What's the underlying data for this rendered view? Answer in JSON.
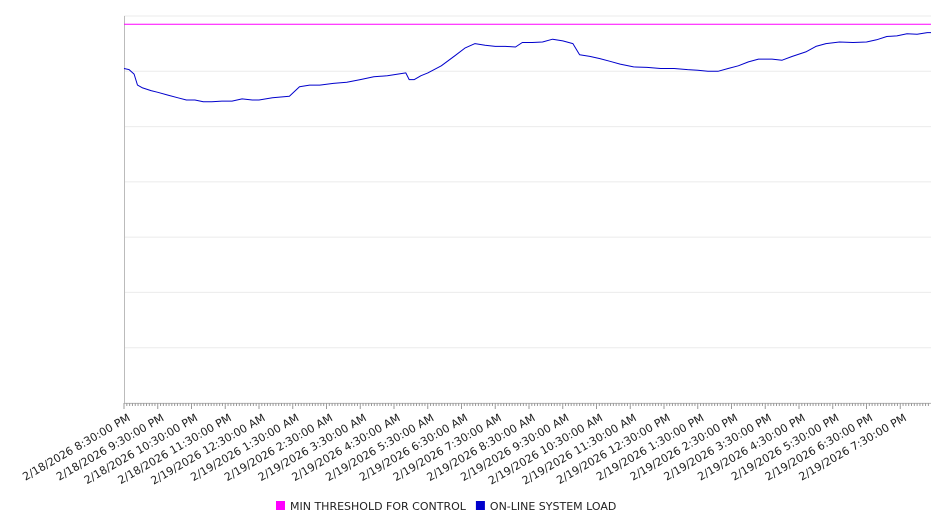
{
  "chart_data": {
    "type": "line",
    "title": "",
    "xlabel": "",
    "ylabel": "",
    "ylim": [
      0,
      7
    ],
    "grid": "horizontal",
    "legend_placement": "bottom-center",
    "x_tick_labels": [
      "2/18/2026 8:30:00 PM",
      "2/18/2026 9:30:00 PM",
      "2/18/2026 10:30:00 PM",
      "2/18/2026 11:30:00 PM",
      "2/19/2026 12:30:00 AM",
      "2/19/2026 1:30:00 AM",
      "2/19/2026 2:30:00 AM",
      "2/19/2026 3:30:00 AM",
      "2/19/2026 4:30:00 AM",
      "2/19/2026 5:30:00 AM",
      "2/19/2026 6:30:00 AM",
      "2/19/2026 7:30:00 AM",
      "2/19/2026 8:30:00 AM",
      "2/19/2026 9:30:00 AM",
      "2/19/2026 10:30:00 AM",
      "2/19/2026 11:30:00 AM",
      "2/19/2026 12:30:00 PM",
      "2/19/2026 1:30:00 PM",
      "2/19/2026 2:30:00 PM",
      "2/19/2026 3:30:00 PM",
      "2/19/2026 4:30:00 PM",
      "2/19/2026 5:30:00 PM",
      "2/19/2026 6:30:00 PM",
      "2/19/2026 7:30:00 PM"
    ],
    "x_minor_ticks_per_major": 12,
    "series": [
      {
        "name": "MIN THRESHOLD FOR CONTROL",
        "color": "#ff00ff",
        "points": [
          [
            0,
            6.85
          ],
          [
            24.25,
            6.85
          ]
        ]
      },
      {
        "name": "ON-LINE SYSTEM LOAD",
        "color": "#0000cc",
        "points": [
          [
            0,
            6.05
          ],
          [
            0.15,
            6.03
          ],
          [
            0.3,
            5.95
          ],
          [
            0.4,
            5.75
          ],
          [
            0.55,
            5.7
          ],
          [
            0.8,
            5.65
          ],
          [
            1.0,
            5.62
          ],
          [
            1.3,
            5.57
          ],
          [
            1.6,
            5.52
          ],
          [
            1.85,
            5.48
          ],
          [
            2.1,
            5.48
          ],
          [
            2.35,
            5.45
          ],
          [
            2.6,
            5.45
          ],
          [
            2.9,
            5.46
          ],
          [
            3.2,
            5.46
          ],
          [
            3.5,
            5.5
          ],
          [
            3.8,
            5.48
          ],
          [
            4.0,
            5.48
          ],
          [
            4.4,
            5.52
          ],
          [
            4.9,
            5.55
          ],
          [
            5.2,
            5.72
          ],
          [
            5.5,
            5.75
          ],
          [
            5.8,
            5.75
          ],
          [
            6.2,
            5.78
          ],
          [
            6.6,
            5.8
          ],
          [
            7.0,
            5.85
          ],
          [
            7.4,
            5.9
          ],
          [
            7.8,
            5.92
          ],
          [
            8.35,
            5.97
          ],
          [
            8.45,
            5.85
          ],
          [
            8.6,
            5.85
          ],
          [
            8.8,
            5.92
          ],
          [
            9.0,
            5.97
          ],
          [
            9.4,
            6.1
          ],
          [
            9.8,
            6.28
          ],
          [
            10.1,
            6.42
          ],
          [
            10.4,
            6.5
          ],
          [
            10.7,
            6.47
          ],
          [
            11.0,
            6.45
          ],
          [
            11.3,
            6.45
          ],
          [
            11.6,
            6.44
          ],
          [
            11.8,
            6.52
          ],
          [
            12.1,
            6.52
          ],
          [
            12.4,
            6.53
          ],
          [
            12.7,
            6.58
          ],
          [
            13.0,
            6.55
          ],
          [
            13.3,
            6.5
          ],
          [
            13.5,
            6.3
          ],
          [
            13.8,
            6.27
          ],
          [
            14.1,
            6.23
          ],
          [
            14.4,
            6.18
          ],
          [
            14.7,
            6.13
          ],
          [
            15.1,
            6.08
          ],
          [
            15.5,
            6.07
          ],
          [
            15.9,
            6.05
          ],
          [
            16.3,
            6.05
          ],
          [
            16.7,
            6.03
          ],
          [
            17.0,
            6.02
          ],
          [
            17.3,
            6.0
          ],
          [
            17.6,
            6.0
          ],
          [
            17.9,
            6.05
          ],
          [
            18.2,
            6.1
          ],
          [
            18.5,
            6.17
          ],
          [
            18.8,
            6.22
          ],
          [
            19.2,
            6.22
          ],
          [
            19.5,
            6.2
          ],
          [
            19.8,
            6.27
          ],
          [
            20.2,
            6.35
          ],
          [
            20.5,
            6.45
          ],
          [
            20.8,
            6.5
          ],
          [
            21.2,
            6.53
          ],
          [
            21.6,
            6.52
          ],
          [
            22.0,
            6.53
          ],
          [
            22.3,
            6.57
          ],
          [
            22.6,
            6.63
          ],
          [
            22.9,
            6.64
          ],
          [
            23.2,
            6.68
          ],
          [
            23.5,
            6.67
          ],
          [
            23.8,
            6.7
          ],
          [
            24.1,
            6.7
          ],
          [
            24.25,
            6.7
          ]
        ]
      }
    ]
  }
}
